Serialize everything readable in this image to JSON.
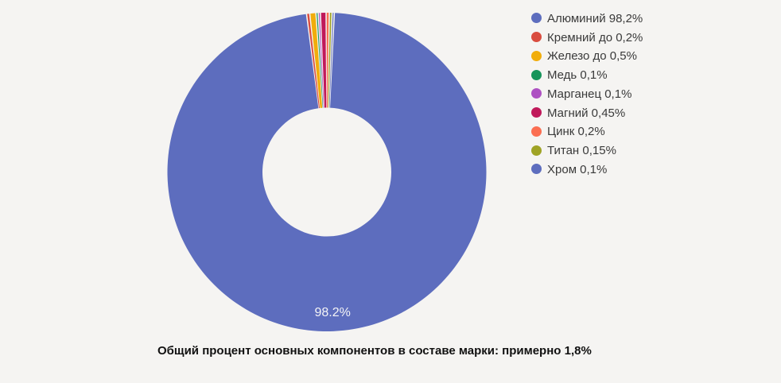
{
  "page": {
    "background": "#f5f4f2"
  },
  "chart_data": {
    "type": "pie",
    "donut": true,
    "title": "",
    "labels": [
      "Алюминий",
      "Кремний",
      "Железо",
      "Медь",
      "Марганец",
      "Магний",
      "Цинк",
      "Титан",
      "Хром"
    ],
    "values": [
      98.2,
      0.2,
      0.5,
      0.1,
      0.1,
      0.45,
      0.2,
      0.15,
      0.1
    ],
    "legend_entries": [
      "Алюминий 98,2%",
      "Кремний до 0,2%",
      "Железо до 0,5%",
      "Медь 0,1%",
      "Марганец 0,1%",
      "Магний 0,45%",
      "Цинк 0,2%",
      "Титан 0,15%",
      "Хром 0,1%"
    ],
    "colors": [
      "#5d6dbe",
      "#d94c3f",
      "#f1ad0b",
      "#16945a",
      "#ae51c2",
      "#c0195a",
      "#fb6e51",
      "#9fa325",
      "#5d6dbe"
    ],
    "center_label": "98.2%",
    "caption": "Общий процент основных компонентов в составе марки: примерно 1,8%",
    "legend_position": "right",
    "grid": "off"
  }
}
